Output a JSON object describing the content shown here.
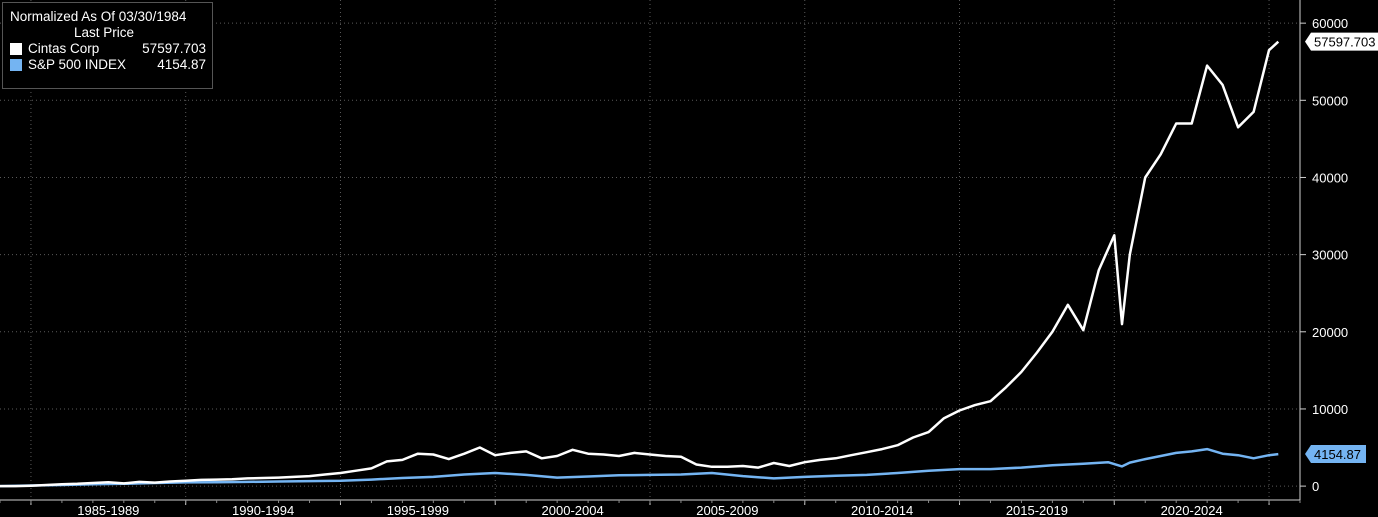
{
  "legend": {
    "title": "Normalized As Of 03/30/1984",
    "subtitle": "Last Price"
  },
  "chart_data": {
    "type": "line",
    "x_tick_labels": [
      "1985-1989",
      "1990-1994",
      "1995-1999",
      "2000-2004",
      "2005-2009",
      "2010-2014",
      "2015-2019",
      "2020-2024"
    ],
    "y_ticks": [
      0,
      10000,
      20000,
      30000,
      40000,
      50000,
      60000
    ],
    "ylim": [
      -1800,
      63000
    ],
    "xlim": [
      1984.0,
      2026.0
    ],
    "grid": true,
    "series": [
      {
        "name": "Cintas Corp",
        "last_value": "57597.703",
        "color": "#ffffff",
        "x": [
          1984.0,
          1984.5,
          1985.0,
          1985.5,
          1986.0,
          1986.5,
          1987.0,
          1987.5,
          1988.0,
          1988.5,
          1989.0,
          1989.5,
          1990.0,
          1990.5,
          1991.0,
          1991.5,
          1992.0,
          1992.5,
          1993.0,
          1993.5,
          1994.0,
          1994.5,
          1995.0,
          1995.5,
          1996.0,
          1996.5,
          1997.0,
          1997.5,
          1998.0,
          1998.5,
          1999.0,
          1999.5,
          2000.0,
          2000.5,
          2001.0,
          2001.5,
          2002.0,
          2002.5,
          2003.0,
          2003.5,
          2004.0,
          2004.5,
          2005.0,
          2005.5,
          2006.0,
          2006.5,
          2007.0,
          2007.5,
          2008.0,
          2008.5,
          2009.0,
          2009.5,
          2010.0,
          2010.5,
          2011.0,
          2011.5,
          2012.0,
          2012.5,
          2013.0,
          2013.5,
          2014.0,
          2014.5,
          2015.0,
          2015.5,
          2016.0,
          2016.5,
          2017.0,
          2017.5,
          2018.0,
          2018.5,
          2019.0,
          2019.5,
          2020.0,
          2020.25,
          2020.5,
          2021.0,
          2021.5,
          2022.0,
          2022.5,
          2023.0,
          2023.5,
          2024.0,
          2024.5,
          2025.0,
          2025.3
        ],
        "values": [
          0,
          0,
          50,
          150,
          250,
          300,
          400,
          500,
          350,
          550,
          450,
          600,
          700,
          800,
          850,
          900,
          1000,
          1050,
          1100,
          1200,
          1300,
          1500,
          1700,
          2000,
          2300,
          3200,
          3400,
          4200,
          4100,
          3500,
          4200,
          5000,
          4000,
          4300,
          4500,
          3600,
          3900,
          4700,
          4200,
          4100,
          3900,
          4300,
          4100,
          3900,
          3800,
          2800,
          2500,
          2500,
          2600,
          2400,
          3000,
          2600,
          3100,
          3400,
          3600,
          4000,
          4400,
          4800,
          5300,
          6300,
          7000,
          8800,
          9800,
          10500,
          11000,
          12800,
          14800,
          17300,
          20000,
          23500,
          20200,
          28000,
          32500,
          21000,
          30000,
          40000,
          43000,
          47000,
          47000,
          54500,
          52000,
          46500,
          48500,
          56500,
          57597.703
        ]
      },
      {
        "name": "S&P 500 INDEX",
        "last_value": "4154.87",
        "color": "#74b4f2",
        "x": [
          1984.0,
          1985.0,
          1986.0,
          1987.0,
          1988.0,
          1989.0,
          1990.0,
          1991.0,
          1992.0,
          1993.0,
          1994.0,
          1995.0,
          1996.0,
          1997.0,
          1998.0,
          1999.0,
          2000.0,
          2001.0,
          2002.0,
          2003.0,
          2004.0,
          2005.0,
          2006.0,
          2007.0,
          2008.0,
          2009.0,
          2010.0,
          2011.0,
          2012.0,
          2013.0,
          2014.0,
          2015.0,
          2016.0,
          2017.0,
          2018.0,
          2019.0,
          2019.8,
          2020.25,
          2020.5,
          2021.0,
          2021.5,
          2022.0,
          2022.5,
          2023.0,
          2023.5,
          2024.0,
          2024.5,
          2025.0,
          2025.3
        ],
        "values": [
          0,
          80,
          150,
          250,
          300,
          400,
          480,
          500,
          550,
          600,
          650,
          700,
          850,
          1050,
          1200,
          1500,
          1700,
          1450,
          1100,
          1250,
          1400,
          1450,
          1500,
          1700,
          1300,
          1000,
          1200,
          1350,
          1450,
          1700,
          2000,
          2200,
          2200,
          2400,
          2700,
          2900,
          3100,
          2550,
          3050,
          3500,
          3900,
          4300,
          4500,
          4800,
          4200,
          4000,
          3600,
          4000,
          4154.87
        ]
      }
    ]
  }
}
